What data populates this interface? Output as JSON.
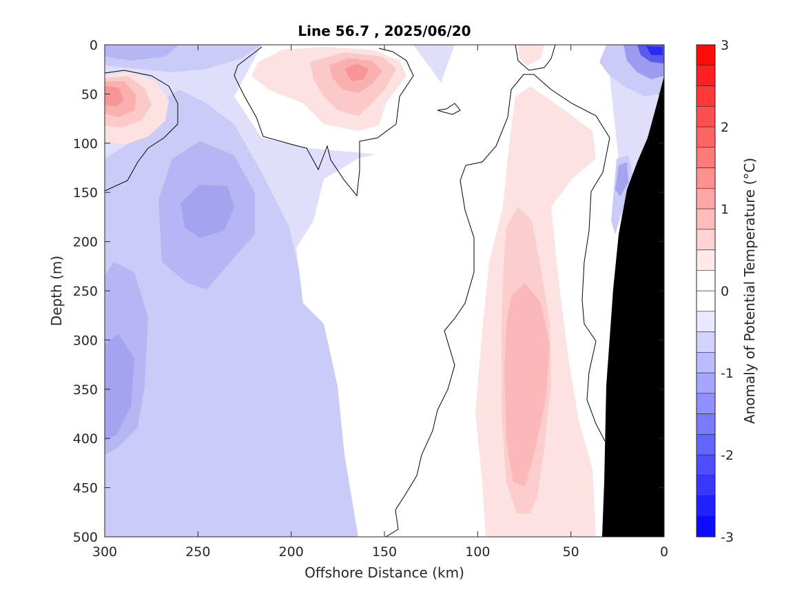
{
  "chart_data": {
    "type": "contour",
    "title": "Line 56.7 , 2025/06/20",
    "xlabel": "Offshore Distance (km)",
    "ylabel": "Depth (m)",
    "xlim": [
      300,
      0
    ],
    "x_reversed": true,
    "ylim": [
      0,
      500
    ],
    "y_reversed": true,
    "x_ticks": [
      300,
      250,
      200,
      150,
      100,
      50,
      0
    ],
    "y_ticks": [
      0,
      50,
      100,
      150,
      200,
      250,
      300,
      350,
      400,
      450,
      500
    ],
    "grid": false,
    "colorbar": {
      "label": "Anomaly of Potential Temperature (°C)",
      "range": [
        -3,
        3
      ],
      "ticks": [
        3,
        2,
        1,
        0,
        -1,
        -2,
        -3
      ],
      "levels": [
        -3,
        -2.75,
        -2.5,
        -2.25,
        -2,
        -1.75,
        -1.5,
        -1.25,
        -1,
        -0.75,
        -0.5,
        -0.25,
        0,
        0.25,
        0.5,
        0.75,
        1,
        1.25,
        1.5,
        1.75,
        2,
        2.25,
        2.5,
        2.75,
        3
      ],
      "cmap_cold": "#0000ff",
      "cmap_neutral": "#ffffff",
      "cmap_warm": "#ff0000"
    },
    "zero_contour_color": "#000000",
    "bathymetry_color": "#000000",
    "regions": [
      {
        "name": "surface cold patch west",
        "anomaly": -0.5,
        "x": [
          300,
          220
        ],
        "y": [
          0,
          30
        ]
      },
      {
        "name": "warm core west",
        "anomaly": 1.25,
        "x": [
          300,
          275
        ],
        "y": [
          30,
          80
        ]
      },
      {
        "name": "warm core central",
        "anomaly": 1.0,
        "x": [
          215,
          140
        ],
        "y": [
          10,
          150
        ]
      },
      {
        "name": "cold core",
        "anomaly": -0.75,
        "x": [
          250,
          220
        ],
        "y": [
          150,
          190
        ]
      },
      {
        "name": "cold deep west",
        "anomaly": -0.75,
        "x": [
          300,
          285
        ],
        "y": [
          290,
          410
        ]
      },
      {
        "name": "warm column",
        "anomaly": 0.5,
        "x": [
          100,
          40
        ],
        "y": [
          50,
          500
        ]
      },
      {
        "name": "cold nearshore surface",
        "anomaly": -2.0,
        "x": [
          20,
          0
        ],
        "y": [
          0,
          40
        ]
      }
    ]
  }
}
